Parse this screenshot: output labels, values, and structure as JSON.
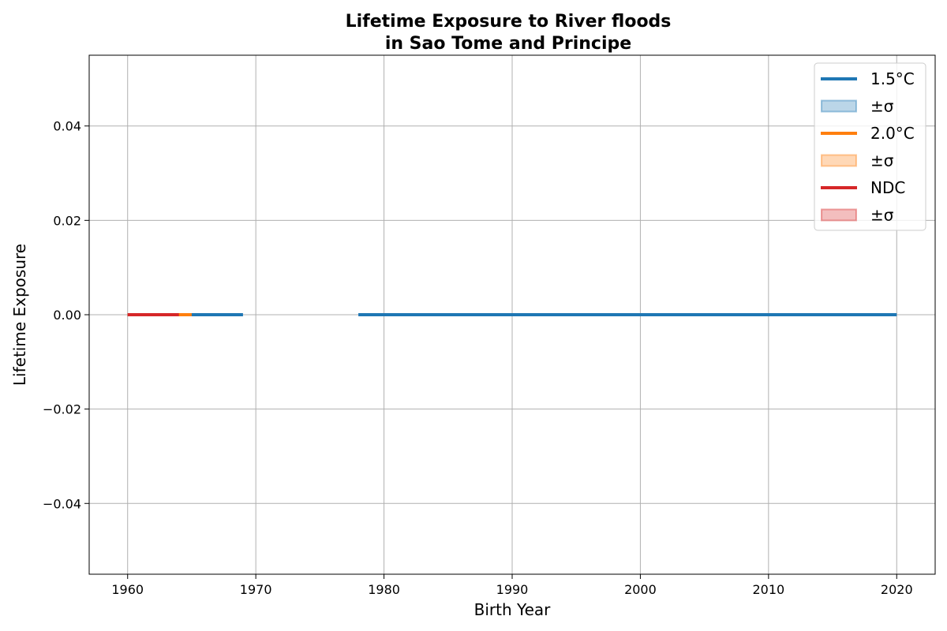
{
  "chart_data": {
    "type": "line",
    "title_line1": "Lifetime Exposure to River floods",
    "title_line2": "in Sao Tome and Principe",
    "xlabel": "Birth Year",
    "ylabel": "Lifetime Exposure",
    "xlim": [
      1957,
      2023
    ],
    "ylim": [
      -0.055,
      0.055
    ],
    "xticks": [
      1960,
      1970,
      1980,
      1990,
      2000,
      2010,
      2020
    ],
    "xtick_labels": [
      "1960",
      "1970",
      "1980",
      "1990",
      "2000",
      "2010",
      "2020"
    ],
    "yticks": [
      -0.04,
      -0.02,
      0.0,
      0.02,
      0.04
    ],
    "ytick_labels": [
      "−0.04",
      "−0.02",
      "0.00",
      "0.02",
      "0.04"
    ],
    "grid": true,
    "legend_position": "top-right",
    "series": [
      {
        "name": "1.5°C",
        "color": "#1f77b4",
        "segments": [
          {
            "x": [
              1960,
              1969
            ],
            "y": [
              0,
              0
            ]
          },
          {
            "x": [
              1978,
              2020
            ],
            "y": [
              0,
              0
            ]
          }
        ]
      },
      {
        "name": "2.0°C",
        "color": "#ff7f0e",
        "segments": [
          {
            "x": [
              1960,
              1965
            ],
            "y": [
              0,
              0
            ]
          }
        ]
      },
      {
        "name": "NDC",
        "color": "#d62728",
        "segments": [
          {
            "x": [
              1960,
              1964
            ],
            "y": [
              0,
              0
            ]
          }
        ]
      }
    ],
    "legend": [
      {
        "label": "1.5°C",
        "kind": "line",
        "color": "#1f77b4"
      },
      {
        "label": "±σ",
        "kind": "band",
        "color": "#1f77b4"
      },
      {
        "label": "2.0°C",
        "kind": "line",
        "color": "#ff7f0e"
      },
      {
        "label": "±σ",
        "kind": "band",
        "color": "#ff7f0e"
      },
      {
        "label": "NDC",
        "kind": "line",
        "color": "#d62728"
      },
      {
        "label": "±σ",
        "kind": "band",
        "color": "#d62728"
      }
    ]
  }
}
